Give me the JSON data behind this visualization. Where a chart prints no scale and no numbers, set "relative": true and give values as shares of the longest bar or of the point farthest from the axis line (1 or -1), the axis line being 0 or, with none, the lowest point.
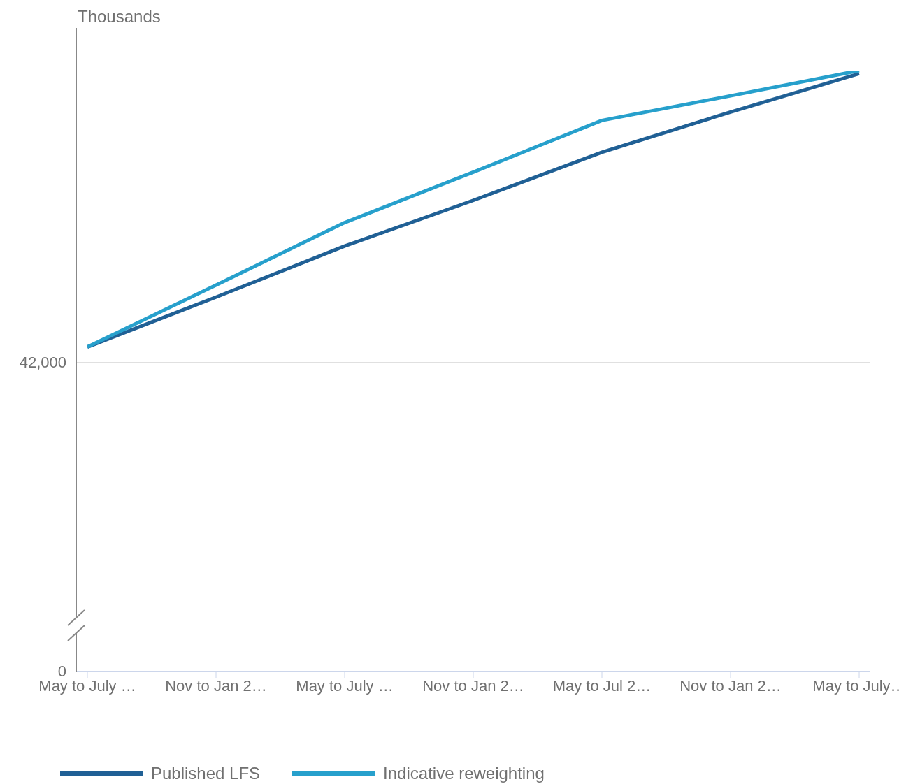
{
  "chart_data": {
    "type": "line",
    "ylabel": "Thousands",
    "relative": true,
    "categories": [
      "May to July …",
      "Nov to Jan 2…",
      "May to July …",
      "Nov to Jan 2…",
      "May to Jul 2…",
      "Nov to Jan 2…",
      "May to July…"
    ],
    "series": [
      {
        "name": "Published LFS",
        "color": "#206095",
        "values": [
          0.54,
          0.623,
          0.708,
          0.784,
          0.864,
          0.931,
          0.995
        ]
      },
      {
        "name": "Indicative reweighting",
        "color": "#27a0cc",
        "values": [
          0.54,
          0.643,
          0.747,
          0.831,
          0.917,
          0.958,
          1
        ]
      }
    ],
    "ref_lines": [
      {
        "axis": "y",
        "value": 0.514,
        "color": "#e0e0e0"
      }
    ],
    "annotations": [
      "42,000",
      "0"
    ],
    "legend": "bottom",
    "marker": "none",
    "line_style": "solid"
  }
}
